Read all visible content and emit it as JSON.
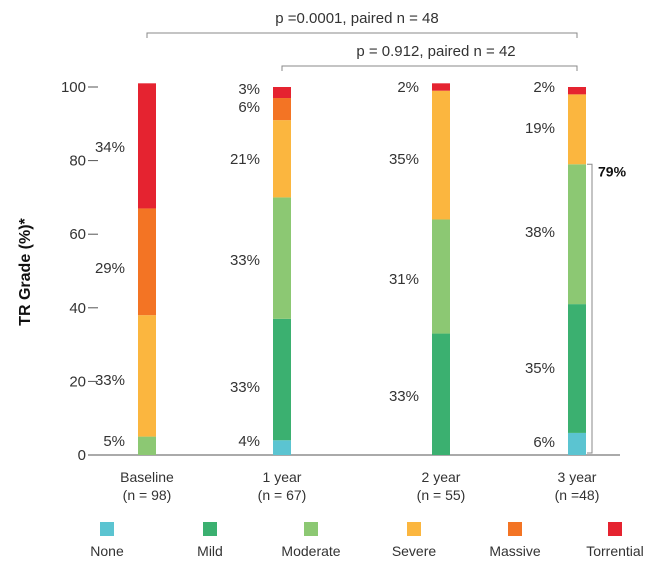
{
  "chart_data": {
    "type": "bar",
    "stacked": true,
    "orientation": "vertical",
    "ylabel": "TR Grade (%)*",
    "xlabel": "",
    "ylim": [
      0,
      100
    ],
    "yticks": [
      0,
      20,
      40,
      60,
      80,
      100
    ],
    "grid": false,
    "legend_position": "bottom",
    "categories": [
      {
        "label": "Baseline",
        "n_label": "(n = 98)"
      },
      {
        "label": "1 year",
        "n_label": "(n = 67)"
      },
      {
        "label": "2 year",
        "n_label": "(n = 55)"
      },
      {
        "label": "3 year",
        "n_label": "(n =48)"
      }
    ],
    "series": [
      {
        "name": "None",
        "color": "#5bc4d1",
        "values": [
          0,
          4,
          0,
          6
        ]
      },
      {
        "name": "Mild",
        "color": "#3bb070",
        "values": [
          0,
          33,
          33,
          35
        ]
      },
      {
        "name": "Moderate",
        "color": "#8cc873",
        "values": [
          5,
          33,
          31,
          38
        ]
      },
      {
        "name": "Severe",
        "color": "#fbb63f",
        "values": [
          33,
          21,
          35,
          19
        ]
      },
      {
        "name": "Massive",
        "color": "#f37424",
        "values": [
          29,
          6,
          0,
          0
        ]
      },
      {
        "name": "Torrential",
        "color": "#e52330",
        "values": [
          34,
          3,
          2,
          2
        ]
      }
    ],
    "bar_labels": [
      [
        "5%",
        "33%",
        "29%",
        "34%"
      ],
      [
        "4%",
        "33%",
        "33%",
        "21%",
        "6%",
        "3%"
      ],
      [
        "33%",
        "31%",
        "35%",
        "2%"
      ],
      [
        "6%",
        "35%",
        "38%",
        "19%",
        "2%"
      ]
    ],
    "annotations": {
      "comparisons": [
        {
          "label": "p =0.0001, paired n = 48",
          "from": 0,
          "to": 3
        },
        {
          "label": "p = 0.912, paired n = 42",
          "from": 1,
          "to": 3
        }
      ],
      "summary": {
        "label": "79%",
        "category": 3
      }
    }
  }
}
